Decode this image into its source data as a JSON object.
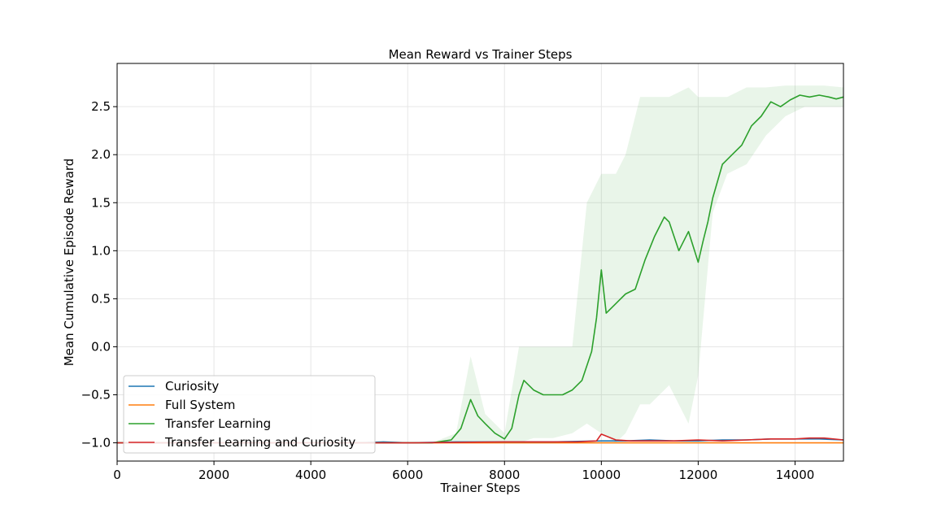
{
  "chart_data": {
    "type": "line",
    "title": "Mean Reward vs Trainer Steps",
    "xlabel": "Trainer Steps",
    "ylabel": "Mean Cumulative Episode Reward",
    "xlim": [
      0,
      15000
    ],
    "ylim": [
      -1.19,
      2.95
    ],
    "x_ticks": [
      0,
      2000,
      4000,
      6000,
      8000,
      10000,
      12000,
      14000
    ],
    "x_tick_labels": [
      "0",
      "2000",
      "4000",
      "6000",
      "8000",
      "10000",
      "12000",
      "14000"
    ],
    "y_ticks": [
      -1.0,
      -0.5,
      0.0,
      0.5,
      1.0,
      1.5,
      2.0,
      2.5
    ],
    "y_tick_labels": [
      "−1.0",
      "−0.5",
      "0.0",
      "0.5",
      "1.0",
      "1.5",
      "2.0",
      "2.5"
    ],
    "grid": true,
    "legend_position": "bottom-left",
    "series": [
      {
        "name": "Curiosity",
        "color": "#1f77b4",
        "x": [
          0,
          1000,
          2000,
          3000,
          4000,
          5000,
          5500,
          6000,
          7000,
          8000,
          9000,
          10000,
          10500,
          11000,
          11500,
          12000,
          12500,
          13000,
          13500,
          14000,
          14500,
          15000
        ],
        "y": [
          -1.0,
          -1.0,
          -1.0,
          -1.0,
          -1.0,
          -1.0,
          -0.99,
          -1.0,
          -0.99,
          -0.99,
          -0.99,
          -0.98,
          -0.98,
          -0.97,
          -0.98,
          -0.98,
          -0.97,
          -0.97,
          -0.96,
          -0.96,
          -0.96,
          -0.97
        ]
      },
      {
        "name": "Full System",
        "color": "#ff7f0e",
        "x": [
          0,
          3000,
          6000,
          9000,
          12000,
          15000
        ],
        "y": [
          -1.0,
          -1.0,
          -1.0,
          -1.0,
          -1.0,
          -1.0
        ]
      },
      {
        "name": "Transfer Learning",
        "color": "#2ca02c",
        "x": [
          0,
          6500,
          6900,
          7100,
          7300,
          7450,
          7600,
          7800,
          8000,
          8150,
          8300,
          8400,
          8600,
          8800,
          9000,
          9200,
          9400,
          9600,
          9800,
          9900,
          10000,
          10100,
          10300,
          10500,
          10700,
          10900,
          11100,
          11300,
          11400,
          11600,
          11800,
          12000,
          12100,
          12200,
          12300,
          12500,
          12700,
          12900,
          13100,
          13300,
          13500,
          13700,
          13900,
          14100,
          14300,
          14500,
          14700,
          14850,
          15000
        ],
        "y": [
          -1.0,
          -1.0,
          -0.97,
          -0.85,
          -0.55,
          -0.72,
          -0.8,
          -0.9,
          -0.96,
          -0.85,
          -0.5,
          -0.35,
          -0.45,
          -0.5,
          -0.5,
          -0.5,
          -0.45,
          -0.35,
          -0.05,
          0.3,
          0.8,
          0.35,
          0.45,
          0.55,
          0.6,
          0.9,
          1.15,
          1.35,
          1.3,
          1.0,
          1.2,
          0.88,
          1.1,
          1.3,
          1.55,
          1.9,
          2.0,
          2.1,
          2.3,
          2.4,
          2.55,
          2.5,
          2.57,
          2.62,
          2.6,
          2.62,
          2.6,
          2.58,
          2.6
        ]
      },
      {
        "name": "Transfer Learning and Curiosity",
        "color": "#d62728",
        "x": [
          0,
          2000,
          4000,
          6000,
          8000,
          9500,
          9900,
          10000,
          10100,
          10300,
          10600,
          11000,
          11500,
          12000,
          12500,
          13000,
          13500,
          14000,
          14300,
          14600,
          15000
        ],
        "y": [
          -1.0,
          -1.0,
          -1.0,
          -1.0,
          -0.99,
          -0.99,
          -0.98,
          -0.91,
          -0.93,
          -0.97,
          -0.98,
          -0.98,
          -0.98,
          -0.97,
          -0.98,
          -0.97,
          -0.96,
          -0.96,
          -0.95,
          -0.95,
          -0.97
        ]
      }
    ],
    "band": {
      "series": "Transfer Learning",
      "color": "#2ca02c",
      "opacity": 0.1,
      "x": [
        6500,
        7000,
        7300,
        7600,
        8000,
        8300,
        8600,
        9000,
        9400,
        9700,
        10000,
        10300,
        10500,
        10800,
        11000,
        11400,
        11800,
        12000,
        12300,
        12600,
        13000,
        13400,
        13800,
        14200,
        14600,
        15000
      ],
      "upper": [
        -1.0,
        -0.9,
        -0.1,
        -0.7,
        -0.9,
        0.0,
        0.0,
        0.0,
        0.0,
        1.5,
        1.8,
        1.8,
        2.0,
        2.6,
        2.6,
        2.6,
        2.7,
        2.6,
        2.6,
        2.6,
        2.7,
        2.7,
        2.72,
        2.72,
        2.72,
        2.7
      ],
      "lower": [
        -1.0,
        -1.0,
        -1.0,
        -1.0,
        -1.0,
        -1.0,
        -0.95,
        -0.95,
        -0.9,
        -0.8,
        -0.9,
        -1.0,
        -0.9,
        -0.6,
        -0.6,
        -0.4,
        -0.8,
        -0.3,
        1.4,
        1.8,
        1.9,
        2.2,
        2.4,
        2.5,
        2.5,
        2.5
      ]
    }
  }
}
